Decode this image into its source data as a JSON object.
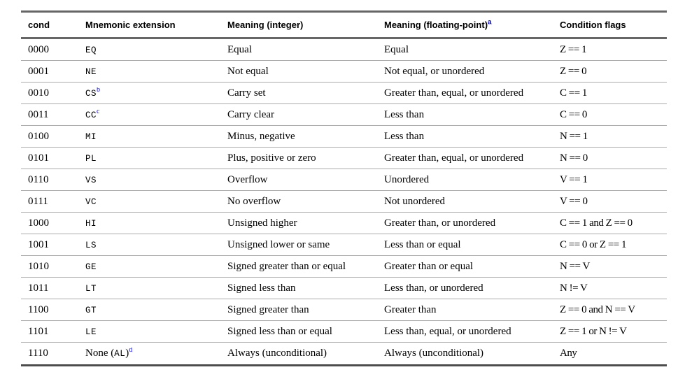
{
  "table": {
    "headers": {
      "cond": "cond",
      "mnemonic": "Mnemonic extension",
      "meaning_int": "Meaning (integer)",
      "meaning_fp": "Meaning (floating-point)",
      "meaning_fp_sup": "a",
      "flags": "Condition flags"
    },
    "footnote_color": "#0000ee",
    "border_color_thick": "#666666",
    "border_color_thin": "#ababab",
    "rows": [
      {
        "cond": "0000",
        "pre": "",
        "mnemonic": "EQ",
        "post": "",
        "sup": "",
        "int": "Equal",
        "fp": "Equal",
        "flags": "Z == 1"
      },
      {
        "cond": "0001",
        "pre": "",
        "mnemonic": "NE",
        "post": "",
        "sup": "",
        "int": "Not equal",
        "fp": "Not equal, or unordered",
        "flags": "Z == 0"
      },
      {
        "cond": "0010",
        "pre": "",
        "mnemonic": "CS",
        "post": "",
        "sup": "b",
        "int": "Carry set",
        "fp": "Greater than, equal, or unordered",
        "flags": "C == 1"
      },
      {
        "cond": "0011",
        "pre": "",
        "mnemonic": "CC",
        "post": "",
        "sup": "c",
        "int": "Carry clear",
        "fp": "Less than",
        "flags": "C == 0"
      },
      {
        "cond": "0100",
        "pre": "",
        "mnemonic": "MI",
        "post": "",
        "sup": "",
        "int": "Minus, negative",
        "fp": "Less than",
        "flags": "N == 1"
      },
      {
        "cond": "0101",
        "pre": "",
        "mnemonic": "PL",
        "post": "",
        "sup": "",
        "int": "Plus, positive or zero",
        "fp": "Greater than, equal, or unordered",
        "flags": "N == 0"
      },
      {
        "cond": "0110",
        "pre": "",
        "mnemonic": "VS",
        "post": "",
        "sup": "",
        "int": "Overflow",
        "fp": "Unordered",
        "flags": "V == 1"
      },
      {
        "cond": "0111",
        "pre": "",
        "mnemonic": "VC",
        "post": "",
        "sup": "",
        "int": "No overflow",
        "fp": "Not unordered",
        "flags": "V == 0"
      },
      {
        "cond": "1000",
        "pre": "",
        "mnemonic": "HI",
        "post": "",
        "sup": "",
        "int": "Unsigned higher",
        "fp": "Greater than, or unordered",
        "flags": "C == 1 and Z == 0"
      },
      {
        "cond": "1001",
        "pre": "",
        "mnemonic": "LS",
        "post": "",
        "sup": "",
        "int": "Unsigned lower or same",
        "fp": "Less than or equal",
        "flags": "C == 0 or Z == 1"
      },
      {
        "cond": "1010",
        "pre": "",
        "mnemonic": "GE",
        "post": "",
        "sup": "",
        "int": "Signed greater than or equal",
        "fp": "Greater than or equal",
        "flags": "N == V"
      },
      {
        "cond": "1011",
        "pre": "",
        "mnemonic": "LT",
        "post": "",
        "sup": "",
        "int": "Signed less than",
        "fp": "Less than, or unordered",
        "flags": "N != V"
      },
      {
        "cond": "1100",
        "pre": "",
        "mnemonic": "GT",
        "post": "",
        "sup": "",
        "int": "Signed greater than",
        "fp": "Greater than",
        "flags": "Z == 0 and N == V"
      },
      {
        "cond": "1101",
        "pre": "",
        "mnemonic": "LE",
        "post": "",
        "sup": "",
        "int": "Signed less than or equal",
        "fp": "Less than, equal, or unordered",
        "flags": "Z == 1 or N != V"
      },
      {
        "cond": "1110",
        "pre": "None (",
        "mnemonic": "AL",
        "post": ")",
        "sup": "d",
        "int": "Always (unconditional)",
        "fp": "Always (unconditional)",
        "flags": "Any"
      }
    ]
  }
}
